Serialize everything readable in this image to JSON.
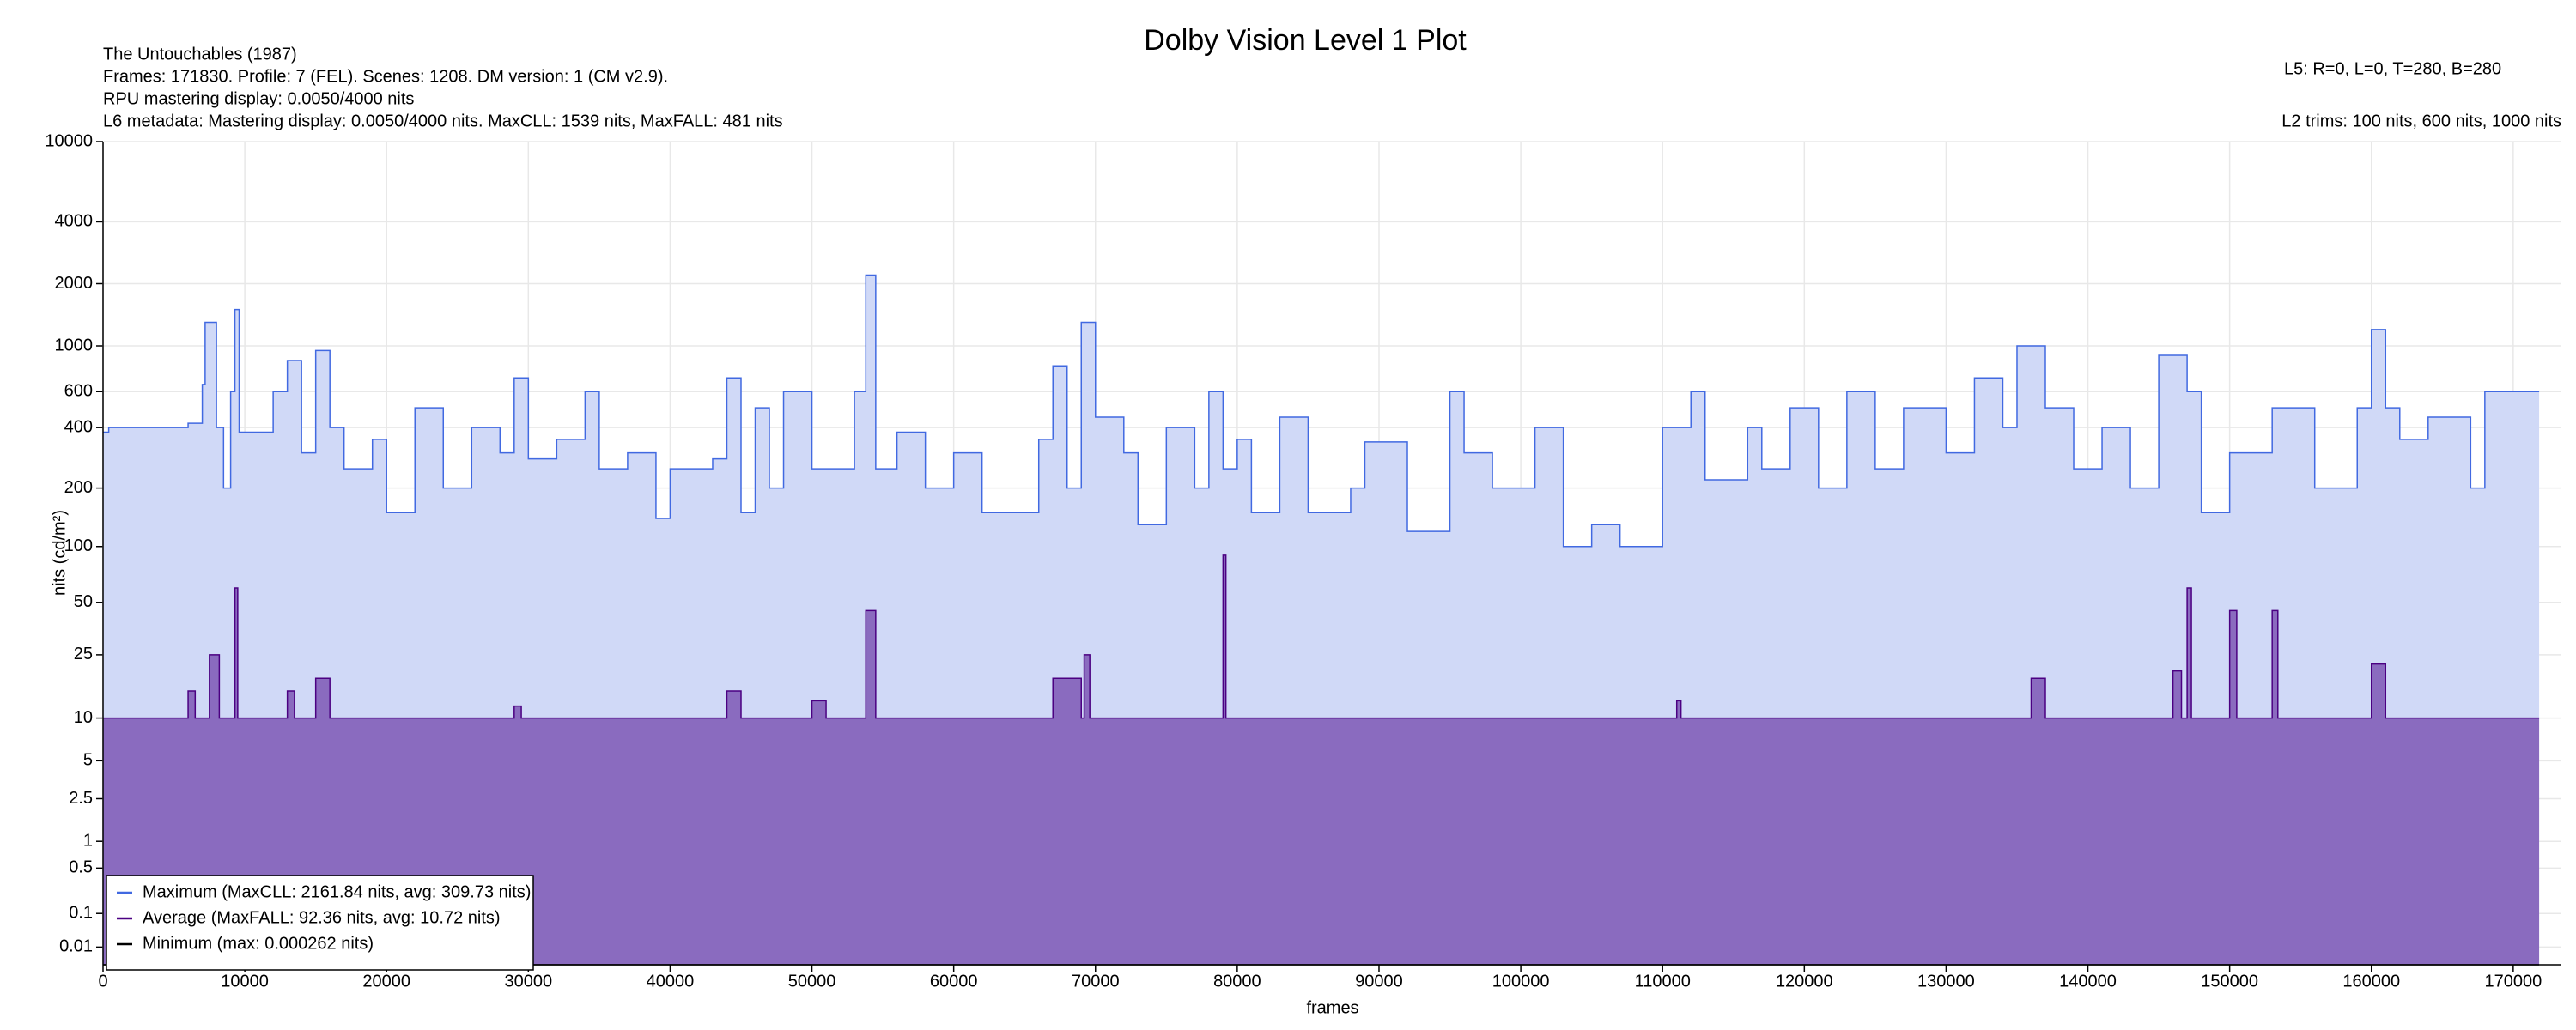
{
  "chart_data": {
    "type": "line",
    "title": "Dolby Vision Level 1 Plot",
    "annotations": [
      "The Untouchables (1987)",
      "Frames: 171830. Profile: 7 (FEL). Scenes: 1208. DM version: 1 (CM v2.9).",
      "RPU mastering display: 0.0050/4000 nits",
      "L6 metadata: Mastering display: 0.0050/4000 nits. MaxCLL: 1539 nits, MaxFALL: 481 nits"
    ],
    "right_annotations": [
      "L5: R=0, L=0, T=280, B=280",
      "L2 trims: 100 nits, 600 nits, 1000 nits"
    ],
    "xlabel": "frames",
    "ylabel": "nits (cd/m²)",
    "yscale": "pq",
    "grid": true,
    "legend": "lower left",
    "xlim": [
      0,
      173400
    ],
    "ylim": [
      0,
      10000
    ],
    "xticks": [
      0,
      10000,
      20000,
      30000,
      40000,
      50000,
      60000,
      70000,
      80000,
      90000,
      100000,
      110000,
      120000,
      130000,
      140000,
      150000,
      160000,
      170000
    ],
    "yticks": [
      0.01,
      0.1,
      0.5,
      1,
      2.5,
      5,
      10,
      25,
      50,
      100,
      200,
      400,
      600,
      1000,
      2000,
      4000,
      10000
    ],
    "series": [
      {
        "name": "Maximum (MaxCLL: 2161.84 nits, avg: 309.73 nits)",
        "color": "#4169e1",
        "fill": "#d0d9f7",
        "x": [
          0,
          400,
          6000,
          7000,
          7200,
          8000,
          8500,
          9000,
          9300,
          9600,
          12000,
          13000,
          14000,
          15000,
          16000,
          17000,
          19000,
          20000,
          22000,
          24000,
          26000,
          28000,
          29000,
          30000,
          32000,
          34000,
          35000,
          37000,
          39000,
          40000,
          43000,
          44000,
          45000,
          46000,
          47000,
          48000,
          50000,
          53000,
          53800,
          54500,
          56000,
          58000,
          60000,
          62000,
          66000,
          67000,
          68000,
          69000,
          70000,
          72000,
          73000,
          75000,
          77000,
          78000,
          79000,
          80000,
          81000,
          83000,
          85000,
          88000,
          89000,
          92000,
          95000,
          96000,
          98000,
          101000,
          103000,
          105000,
          107000,
          110000,
          112000,
          113000,
          116000,
          117000,
          119000,
          121000,
          123000,
          125000,
          127000,
          130000,
          132000,
          134000,
          135000,
          137000,
          139000,
          141000,
          143000,
          145000,
          147000,
          148000,
          150000,
          153000,
          156000,
          159000,
          160000,
          161000,
          162000,
          164000,
          167000,
          168000,
          171830
        ],
        "values": [
          380,
          400,
          420,
          650,
          1300,
          400,
          200,
          600,
          1500,
          380,
          600,
          850,
          300,
          950,
          400,
          250,
          350,
          150,
          500,
          200,
          400,
          300,
          700,
          280,
          350,
          600,
          250,
          300,
          140,
          250,
          280,
          700,
          150,
          500,
          200,
          600,
          250,
          600,
          2200,
          250,
          380,
          200,
          300,
          150,
          350,
          800,
          200,
          1300,
          450,
          300,
          130,
          400,
          200,
          600,
          250,
          350,
          150,
          450,
          150,
          200,
          340,
          120,
          600,
          300,
          200,
          400,
          100,
          130,
          100,
          400,
          600,
          220,
          400,
          250,
          500,
          200,
          600,
          250,
          500,
          300,
          700,
          400,
          1000,
          500,
          250,
          400,
          200,
          900,
          600,
          150,
          300,
          500,
          200,
          500,
          1200,
          500,
          350,
          450,
          200,
          600,
          600
        ]
      },
      {
        "name": "Average (MaxFALL: 92.36 nits, avg: 10.72 nits)",
        "color": "#4b0082",
        "fill": "#8a6bbf",
        "x": [
          0,
          6000,
          6500,
          7500,
          8200,
          9300,
          9500,
          13000,
          13500,
          15000,
          16000,
          29000,
          29500,
          44000,
          45000,
          50000,
          51000,
          53800,
          54500,
          67000,
          69000,
          69200,
          69600,
          79000,
          79200,
          111000,
          111300,
          136000,
          137000,
          146000,
          146600,
          147000,
          147300,
          150000,
          150500,
          153000,
          153400,
          160000,
          161000,
          171830
        ],
        "values": [
          10,
          15,
          10,
          25,
          10,
          60,
          10,
          15,
          10,
          18,
          10,
          12,
          10,
          15,
          10,
          13,
          10,
          45,
          10,
          18,
          10,
          25,
          10,
          90,
          10,
          13,
          10,
          18,
          10,
          20,
          10,
          60,
          10,
          45,
          10,
          45,
          10,
          22,
          10,
          10
        ]
      },
      {
        "name": "Minimum (max: 0.000262 nits)",
        "color": "#000000",
        "fill": "none",
        "x": [
          0,
          171830
        ],
        "values": [
          0,
          0
        ]
      }
    ]
  }
}
